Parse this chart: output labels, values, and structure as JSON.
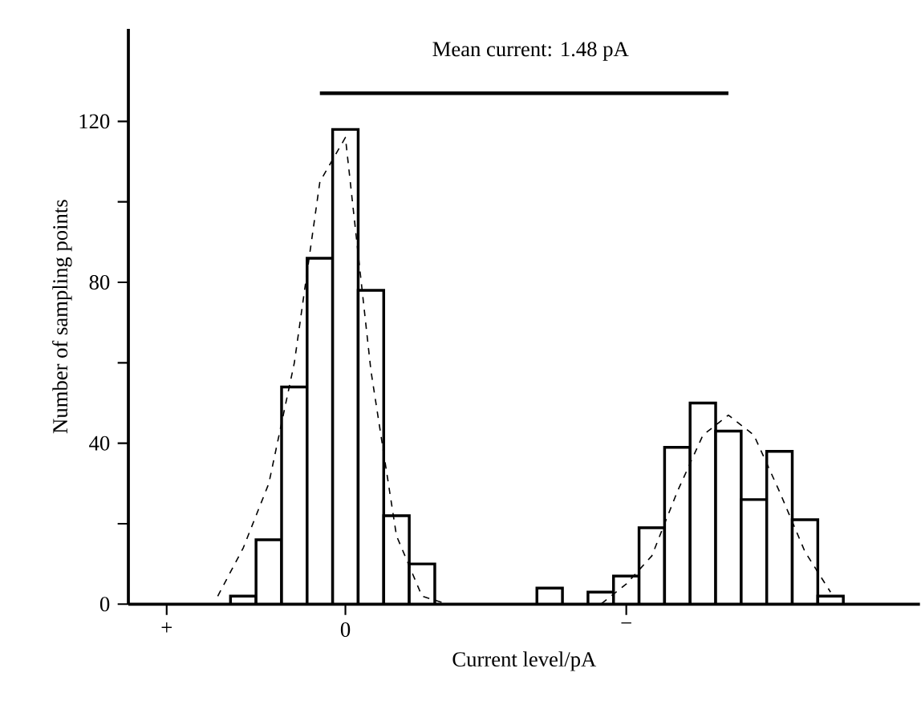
{
  "chart_data": {
    "type": "bar",
    "xlabel": "Current level/pA",
    "ylabel": "Number of sampling points",
    "annotations": [
      "Mean current: 1.48 pA"
    ],
    "categories": [
      null,
      "+",
      null,
      null,
      null,
      null,
      null,
      null,
      "0",
      null,
      null,
      null,
      null,
      null,
      null,
      null,
      null,
      null,
      null,
      "−",
      null,
      null,
      null,
      null,
      null,
      null,
      null,
      null,
      null,
      null,
      null
    ],
    "series": [
      {
        "color": "#000000",
        "values": [
          null,
          null,
          null,
          null,
          2,
          16,
          54,
          86,
          118,
          78,
          22,
          10,
          null,
          null,
          null,
          null,
          4,
          null,
          3,
          7,
          19,
          39,
          50,
          43,
          26,
          38,
          21,
          2,
          null,
          null,
          null
        ]
      },
      {
        "type": "line",
        "color": "#000000",
        "line_style": "dashed",
        "values": [
          null,
          null,
          null,
          2,
          14,
          30,
          60,
          105,
          116,
          58,
          17,
          2,
          0,
          0,
          0,
          0,
          0,
          0,
          0,
          5,
          12,
          28,
          42,
          47,
          42,
          28,
          13,
          3,
          null,
          null,
          null
        ]
      },
      {
        "type": "line",
        "color": "#000000",
        "line_style": "solid",
        "values": [
          null,
          null,
          null,
          null,
          null,
          null,
          null,
          127,
          127,
          127,
          127,
          127,
          127,
          127,
          127,
          127,
          127,
          127,
          127,
          127,
          127,
          127,
          127,
          127,
          null,
          null,
          null,
          null,
          null,
          null,
          null
        ]
      }
    ],
    "ylim": [
      0,
      143
    ],
    "yticks": [
      0,
      {
        "value": 20,
        "label": null
      },
      40,
      {
        "value": 60,
        "label": null
      },
      80,
      {
        "value": 100,
        "label": null
      },
      120
    ]
  }
}
